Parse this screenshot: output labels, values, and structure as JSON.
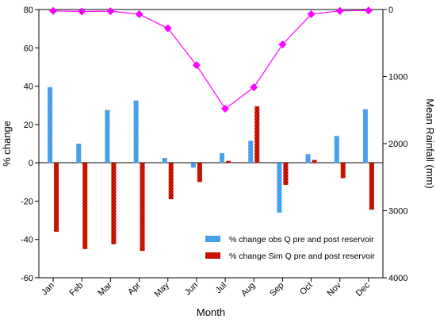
{
  "chart_data": {
    "type": "bar",
    "title": "",
    "xlabel": "Month",
    "ylabel": "% change",
    "ylabel_right": "Mean Rainfall (mm)",
    "categories": [
      "Jan",
      "Feb",
      "Mar",
      "Apr",
      "May",
      "Jun",
      "Jul",
      "Aug",
      "Sep",
      "Oct",
      "Nov",
      "Dec"
    ],
    "ylim": [
      -60,
      80
    ],
    "yticks": [
      "80",
      "60",
      "40",
      "20",
      "0",
      "-20",
      "-40",
      "-60"
    ],
    "ylim_right": [
      0,
      4000
    ],
    "yticks_right": [
      "0",
      "1000",
      "2000",
      "3000",
      "4000"
    ],
    "right_axis_inverted": true,
    "legend_position": "bottom-right",
    "series": [
      {
        "name": "% change obs Q pre and post reservoir",
        "kind": "bar",
        "color": "#b44dff",
        "pattern_color": "#00d8d8",
        "values": [
          39.5,
          10,
          27.5,
          32.5,
          2.5,
          -2.5,
          5,
          11.5,
          -26,
          4.5,
          14,
          28
        ]
      },
      {
        "name": "% change Sim Q pre and post reservoir",
        "kind": "bar",
        "color": "#ff2a00",
        "pattern_color": "#a00000",
        "values": [
          -36,
          -45,
          -42.5,
          -46,
          -19,
          -10,
          1,
          29.5,
          -11.5,
          1.5,
          -8,
          -24.5
        ]
      },
      {
        "name": "",
        "kind": "line",
        "axis": "right",
        "color": "#ff00ff",
        "values": [
          20,
          30,
          25,
          70,
          280,
          830,
          1480,
          1160,
          520,
          70,
          20,
          15
        ]
      }
    ]
  }
}
